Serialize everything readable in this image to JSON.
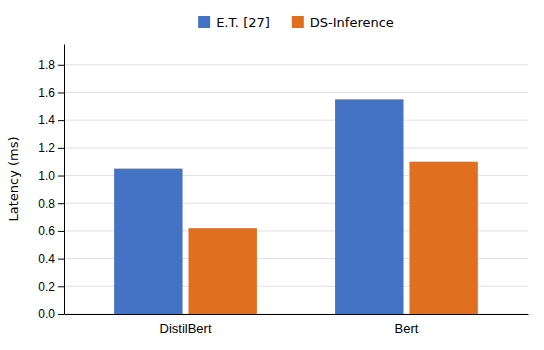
{
  "chart_data": {
    "type": "bar",
    "categories": [
      "DistilBert",
      "Bert"
    ],
    "series": [
      {
        "name": "E.T. [27]",
        "color": "#4472c4",
        "values": [
          1.05,
          1.55
        ]
      },
      {
        "name": "DS-Inference",
        "color": "#e07020",
        "values": [
          0.62,
          1.1
        ]
      }
    ],
    "ylabel": "Latency (ms)",
    "ylim": [
      0,
      1.95
    ],
    "yticks": [
      {
        "value": 0,
        "label": "0.0"
      },
      0.2,
      0.4,
      0.6,
      0.8,
      {
        "value": 1.0,
        "label": "1.0"
      },
      1.2,
      1.4,
      1.6,
      1.8
    ],
    "grid": true,
    "legend": "top"
  }
}
